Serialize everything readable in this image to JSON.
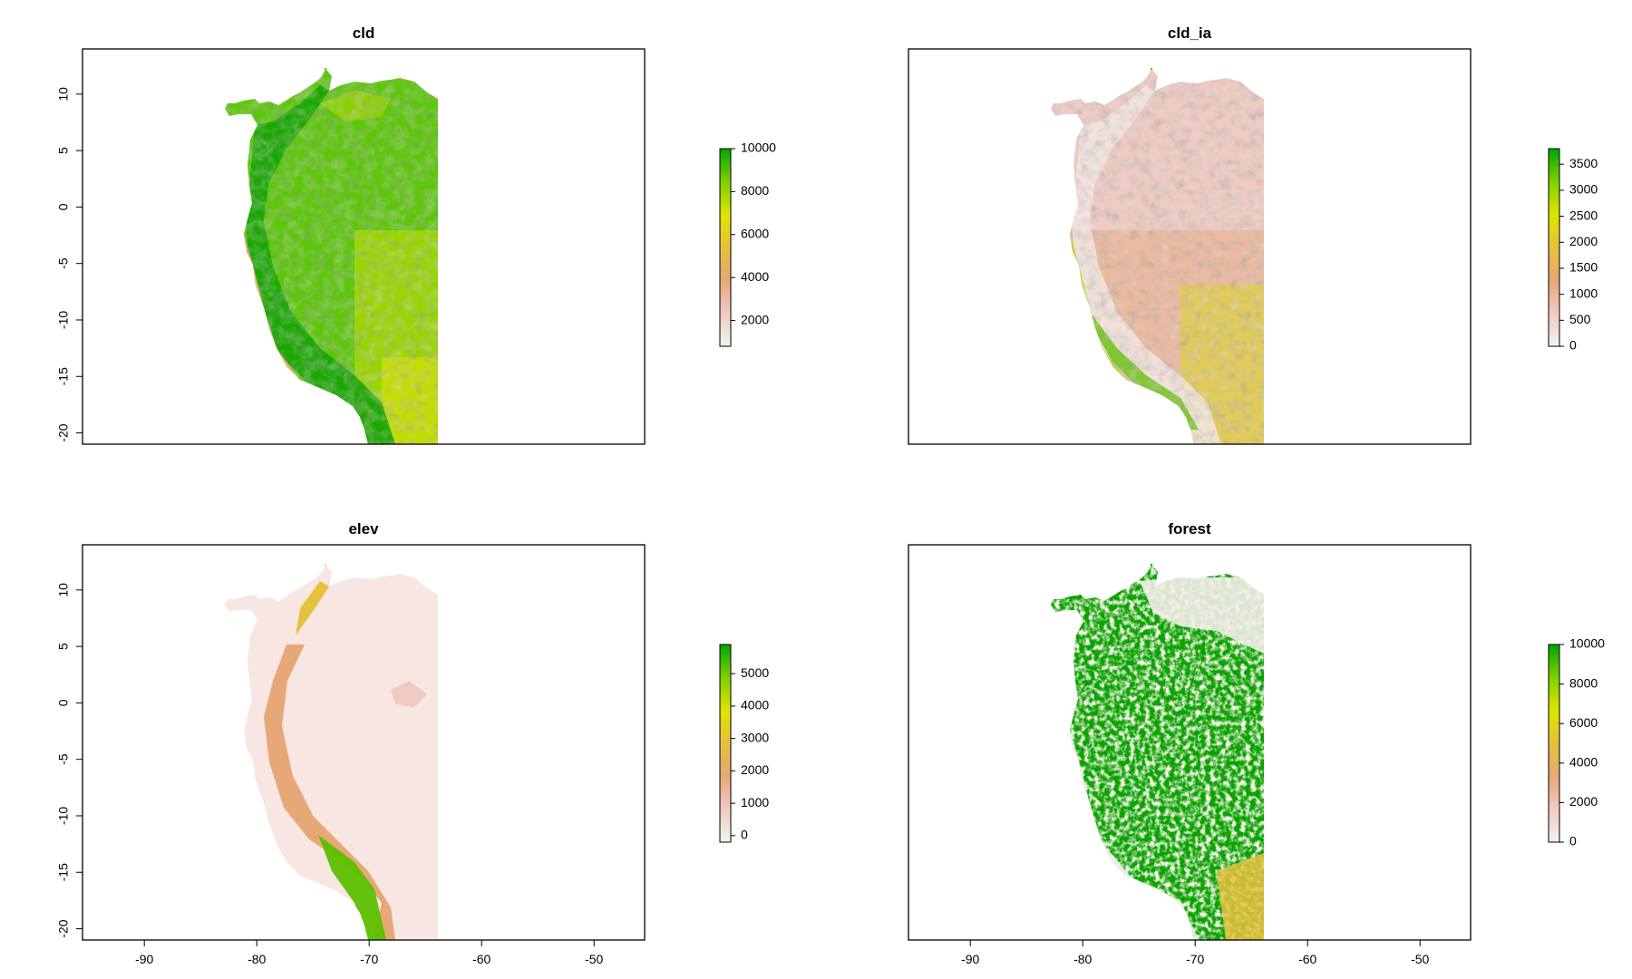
{
  "figure": {
    "x_ticks": [
      "-90",
      "-80",
      "-70",
      "-60",
      "-50"
    ],
    "y_ticks": [
      "10",
      "5",
      "0",
      "-5",
      "-10",
      "-15",
      "-20"
    ]
  },
  "palette": [
    "#f2f2f2",
    "#efcbc3",
    "#e8a777",
    "#e6c13d",
    "#dce600",
    "#7ed000",
    "#00a600"
  ],
  "panels": [
    {
      "id": "cld",
      "title": "cld",
      "legend_ticks": [
        "2000",
        "4000",
        "6000",
        "8000",
        "10000"
      ],
      "legend_range": [
        800,
        10000
      ]
    },
    {
      "id": "cld_ia",
      "title": "cld_ia",
      "legend_ticks": [
        "0",
        "500",
        "1000",
        "1500",
        "2000",
        "2500",
        "3000",
        "3500"
      ],
      "legend_range": [
        0,
        3800
      ]
    },
    {
      "id": "elev",
      "title": "elev",
      "legend_ticks": [
        "0",
        "1000",
        "2000",
        "3000",
        "4000",
        "5000"
      ],
      "legend_range": [
        -200,
        5900
      ]
    },
    {
      "id": "forest",
      "title": "forest",
      "legend_ticks": [
        "0",
        "2000",
        "4000",
        "6000",
        "8000",
        "10000"
      ],
      "legend_range": [
        0,
        10000
      ]
    }
  ],
  "chart_data": [
    {
      "type": "heatmap",
      "title": "cld",
      "xlim": [
        -95.5,
        -45.5
      ],
      "ylim": [
        -21,
        14
      ],
      "legend_ticks": [
        2000,
        4000,
        6000,
        8000,
        10000
      ]
    },
    {
      "type": "heatmap",
      "title": "cld_ia",
      "xlim": [
        -95.5,
        -45.5
      ],
      "ylim": [
        -21,
        14
      ],
      "legend_ticks": [
        0,
        500,
        1000,
        1500,
        2000,
        2500,
        3000,
        3500
      ]
    },
    {
      "type": "heatmap",
      "title": "elev",
      "xlim": [
        -95.5,
        -45.5
      ],
      "ylim": [
        -21,
        14
      ],
      "legend_ticks": [
        0,
        1000,
        2000,
        3000,
        4000,
        5000
      ]
    },
    {
      "type": "heatmap",
      "title": "forest",
      "xlim": [
        -95.5,
        -45.5
      ],
      "ylim": [
        -21,
        14
      ],
      "legend_ticks": [
        0,
        2000,
        4000,
        6000,
        8000,
        10000
      ]
    }
  ]
}
